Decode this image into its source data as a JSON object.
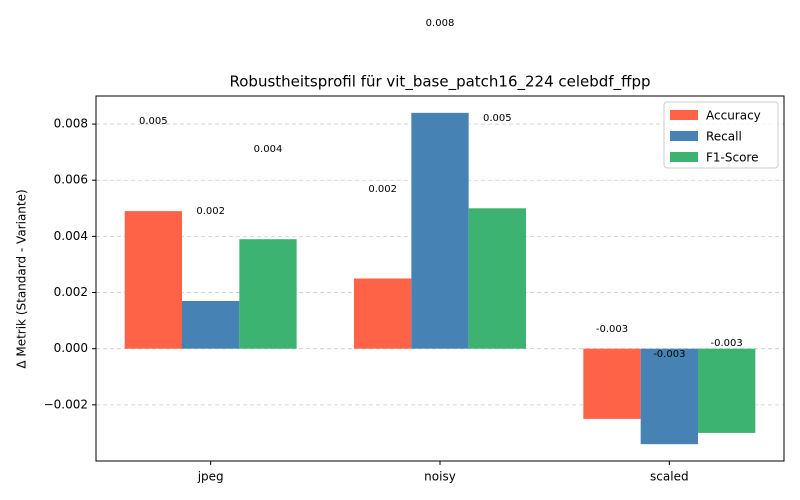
{
  "chart_data": {
    "type": "bar",
    "title": "Robustheitsprofil für vit_base_patch16_224 celebdf_ffpp",
    "y_label": "Δ Metrik (Standard - Variante)",
    "categories": [
      "jpeg",
      "noisy",
      "scaled"
    ],
    "series": [
      {
        "name": "Accuracy",
        "color": "#ff6347",
        "values": [
          0.0049,
          0.0025,
          -0.0025
        ],
        "value_labels": [
          "0.005",
          "0.002",
          "-0.003"
        ]
      },
      {
        "name": "Recall",
        "color": "#4682b4",
        "values": [
          0.0017,
          0.0084,
          -0.0034
        ],
        "value_labels": [
          "0.002",
          "0.008",
          "-0.003"
        ]
      },
      {
        "name": "F1-Score",
        "color": "#3cb371",
        "values": [
          0.0039,
          0.005,
          -0.003
        ],
        "value_labels": [
          "0.004",
          "0.005",
          "-0.003"
        ]
      }
    ],
    "ylim": [
      -0.004,
      0.009
    ],
    "yticks": [
      {
        "value": -0.002,
        "label": "−0.002"
      },
      {
        "value": 0,
        "label": "0.000"
      },
      {
        "value": 0.002,
        "label": "0.002"
      },
      {
        "value": 0.004,
        "label": "0.004"
      },
      {
        "value": 0.006,
        "label": "0.006"
      },
      {
        "value": 0.008,
        "label": "0.008"
      }
    ],
    "grid": true,
    "legend": "upper right"
  }
}
